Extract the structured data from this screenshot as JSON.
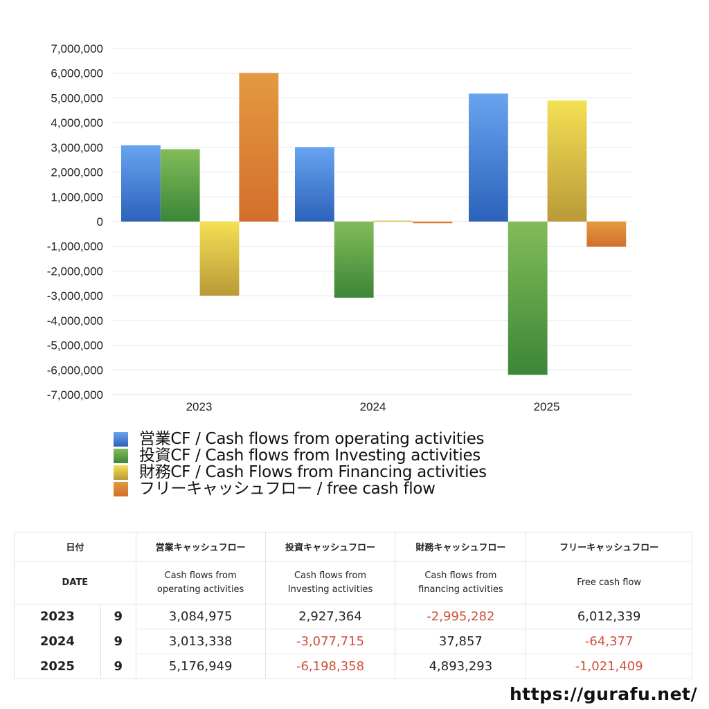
{
  "chart_data": {
    "type": "bar",
    "title": "",
    "xlabel": "",
    "ylabel": "",
    "categories": [
      "2023",
      "2024",
      "2025"
    ],
    "series": [
      {
        "name": "営業CF / Cash flows from operating activities",
        "color": "#3f7ad6",
        "values": [
          3084975,
          3013338,
          5176949
        ]
      },
      {
        "name": "投資CF / Cash flows from Investing activities",
        "color": "#4f9a42",
        "values": [
          2927364,
          -3077715,
          -6198358
        ]
      },
      {
        "name": "財務CF / Cash Flows from Financing activities",
        "color": "#dcc245",
        "values": [
          -2995282,
          37857,
          4893293
        ]
      },
      {
        "name": "フリーキャッシュフロー / free cash flow",
        "color": "#db7f32",
        "values": [
          6012339,
          -64377,
          -1021409
        ]
      }
    ],
    "ylim": [
      -7000000,
      7000000
    ],
    "yticks": [
      "7,000,000",
      "6,000,000",
      "5,000,000",
      "4,000,000",
      "3,000,000",
      "2,000,000",
      "1,000,000",
      "0",
      "-1,000,000",
      "-2,000,000",
      "-3,000,000",
      "-4,000,000",
      "-5,000,000",
      "-6,000,000",
      "-7,000,000"
    ],
    "grid": true,
    "legend_position": "bottom-left"
  },
  "legend": [
    {
      "label": "営業CF / Cash flows from operating activities",
      "color": "#3f7ad6"
    },
    {
      "label": "投資CF / Cash flows from Investing activities",
      "color": "#4f9a42"
    },
    {
      "label": "財務CF / Cash Flows from Financing activities",
      "color": "#dcc245"
    },
    {
      "label": "フリーキャッシュフロー / free cash flow",
      "color": "#db7f32"
    }
  ],
  "table": {
    "header_jp": [
      "日付",
      "営業キャッシュフロー",
      "投資キャッシュフロー",
      "財務キャッシュフロー",
      "フリーキャッシュフロー"
    ],
    "header_en": [
      "DATE",
      "Cash flows from operating activities",
      "Cash flows from Investing activities",
      "Cash flows from financing activities",
      "Free cash flow"
    ],
    "rows": [
      {
        "year": "2023",
        "month": "9",
        "operating": "3,084,975",
        "investing": "2,927,364",
        "financing": "-2,995,282",
        "free": "6,012,339"
      },
      {
        "year": "2024",
        "month": "9",
        "operating": "3,013,338",
        "investing": "-3,077,715",
        "financing": "37,857",
        "free": "-64,377"
      },
      {
        "year": "2025",
        "month": "9",
        "operating": "5,176,949",
        "investing": "-6,198,358",
        "financing": "4,893,293",
        "free": "-1,021,409"
      }
    ]
  },
  "footer": {
    "site_url": "https://gurafu.net/"
  }
}
